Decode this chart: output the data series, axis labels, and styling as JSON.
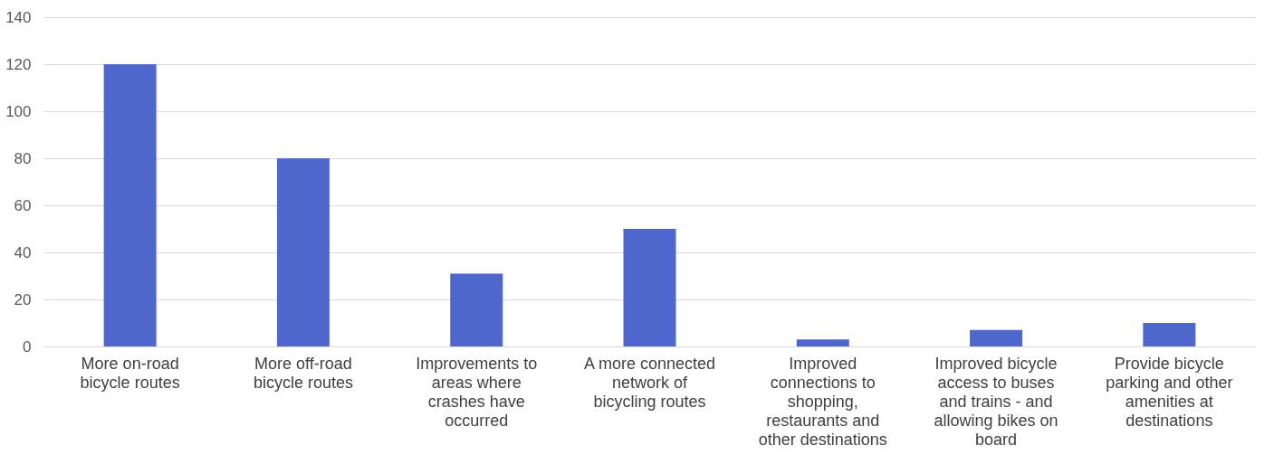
{
  "chart_data": {
    "type": "bar",
    "categories": [
      "More on-road bicycle routes",
      "More off-road bicycle routes",
      "Improvements to areas where crashes have occurred",
      "A more connected network of bicycling routes",
      "Improved connections to shopping, restaurants and other destinations",
      "Improved bicycle access to buses and trains - and allowing bikes on board",
      "Provide bicycle parking and other amenities at destinations"
    ],
    "values": [
      120,
      80,
      31,
      50,
      3,
      7,
      10
    ],
    "color": "#4f67cc",
    "ylim": [
      0,
      140
    ],
    "yticks": [
      0,
      20,
      40,
      60,
      80,
      100,
      120,
      140
    ],
    "grid": "y"
  }
}
